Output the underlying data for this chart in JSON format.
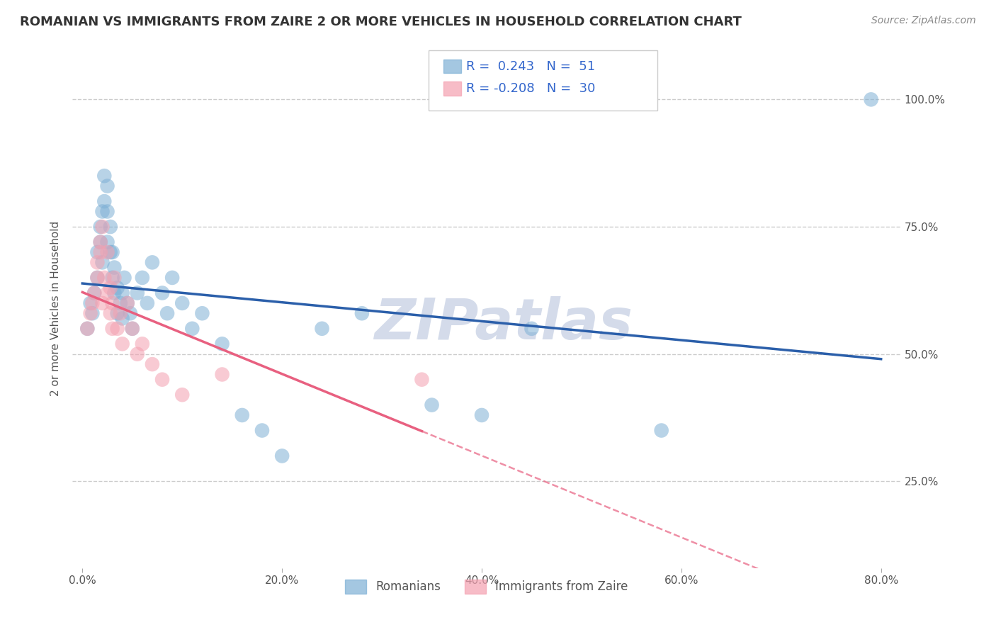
{
  "title": "ROMANIAN VS IMMIGRANTS FROM ZAIRE 2 OR MORE VEHICLES IN HOUSEHOLD CORRELATION CHART",
  "source": "Source: ZipAtlas.com",
  "ylabel": "2 or more Vehicles in Household",
  "legend_romanian": "Romanians",
  "legend_zaire": "Immigrants from Zaire",
  "r_romanian": 0.243,
  "n_romanian": 51,
  "r_zaire": -0.208,
  "n_zaire": 30,
  "color_romanian": "#7EB0D5",
  "color_zaire": "#F4A0B0",
  "line_color_romanian": "#2B5FAA",
  "line_color_zaire": "#E86080",
  "watermark": "ZIPatlas",
  "romanian_x": [
    0.005,
    0.008,
    0.01,
    0.012,
    0.015,
    0.015,
    0.018,
    0.018,
    0.02,
    0.02,
    0.022,
    0.022,
    0.025,
    0.025,
    0.025,
    0.028,
    0.028,
    0.03,
    0.03,
    0.032,
    0.032,
    0.035,
    0.035,
    0.038,
    0.04,
    0.04,
    0.042,
    0.045,
    0.048,
    0.05,
    0.055,
    0.06,
    0.065,
    0.07,
    0.08,
    0.085,
    0.09,
    0.1,
    0.11,
    0.12,
    0.14,
    0.16,
    0.18,
    0.2,
    0.24,
    0.28,
    0.35,
    0.4,
    0.45,
    0.58,
    0.79
  ],
  "romanian_y": [
    0.55,
    0.6,
    0.58,
    0.62,
    0.65,
    0.7,
    0.72,
    0.75,
    0.68,
    0.78,
    0.8,
    0.85,
    0.72,
    0.78,
    0.83,
    0.7,
    0.75,
    0.65,
    0.7,
    0.62,
    0.67,
    0.58,
    0.63,
    0.6,
    0.57,
    0.62,
    0.65,
    0.6,
    0.58,
    0.55,
    0.62,
    0.65,
    0.6,
    0.68,
    0.62,
    0.58,
    0.65,
    0.6,
    0.55,
    0.58,
    0.52,
    0.38,
    0.35,
    0.3,
    0.55,
    0.58,
    0.4,
    0.38,
    0.55,
    0.35,
    1.0
  ],
  "zaire_x": [
    0.005,
    0.008,
    0.01,
    0.012,
    0.015,
    0.015,
    0.018,
    0.018,
    0.02,
    0.02,
    0.022,
    0.025,
    0.025,
    0.028,
    0.028,
    0.03,
    0.03,
    0.032,
    0.035,
    0.038,
    0.04,
    0.045,
    0.05,
    0.055,
    0.06,
    0.07,
    0.08,
    0.1,
    0.14,
    0.34
  ],
  "zaire_y": [
    0.55,
    0.58,
    0.6,
    0.62,
    0.65,
    0.68,
    0.7,
    0.72,
    0.6,
    0.75,
    0.65,
    0.62,
    0.7,
    0.58,
    0.63,
    0.55,
    0.6,
    0.65,
    0.55,
    0.58,
    0.52,
    0.6,
    0.55,
    0.5,
    0.52,
    0.48,
    0.45,
    0.42,
    0.46,
    0.45
  ],
  "xlim": [
    -0.01,
    0.82
  ],
  "ylim": [
    0.08,
    1.1
  ],
  "x_ticks": [
    0.0,
    0.2,
    0.4,
    0.6,
    0.8
  ],
  "x_tick_labels": [
    "0.0%",
    "20.0%",
    "40.0%",
    "60.0%",
    "80.0%"
  ],
  "y_ticks": [
    0.25,
    0.5,
    0.75,
    1.0
  ],
  "y_tick_labels": [
    "25.0%",
    "50.0%",
    "75.0%",
    "100.0%"
  ],
  "grid_color": "#cccccc",
  "title_fontsize": 13,
  "tick_fontsize": 11,
  "ylabel_fontsize": 11
}
